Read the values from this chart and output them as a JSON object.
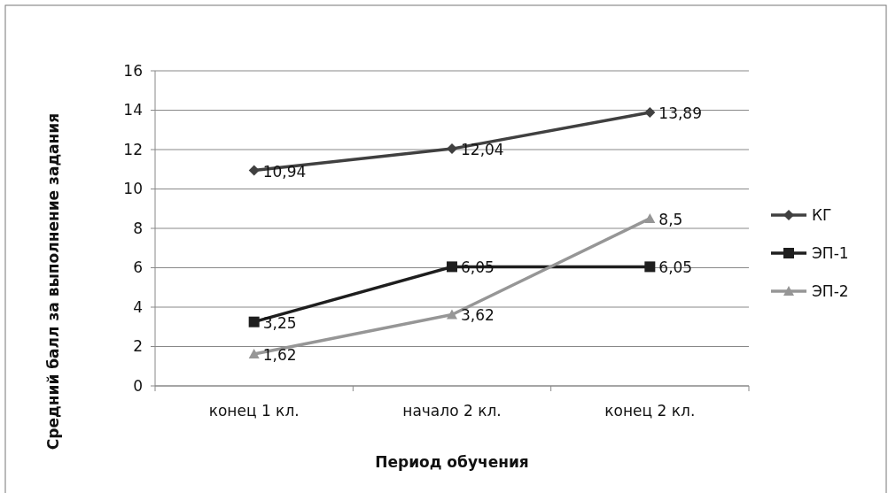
{
  "chart_data": {
    "type": "line",
    "xlabel": "Период обучения",
    "ylabel": "Средний балл за выполнение задания",
    "categories": [
      "конец 1 кл.",
      "начало 2 кл.",
      "конец 2 кл."
    ],
    "series": [
      {
        "name": "КГ",
        "color": "#404040",
        "marker": "diamond",
        "values": [
          10.94,
          12.04,
          13.89
        ],
        "value_labels": [
          "10,94",
          "12,04",
          "13,89"
        ]
      },
      {
        "name": "ЭП-1",
        "color": "#1e1e1e",
        "marker": "square",
        "values": [
          3.25,
          6.05,
          6.05
        ],
        "value_labels": [
          "3,25",
          "6,05",
          "6,05"
        ]
      },
      {
        "name": "ЭП-2",
        "color": "#969696",
        "marker": "triangle",
        "values": [
          1.62,
          3.62,
          8.5
        ],
        "value_labels": [
          "1,62",
          "3,62",
          "8,5"
        ]
      }
    ],
    "ylim": [
      0,
      16
    ],
    "yticks": [
      0,
      2,
      4,
      6,
      8,
      10,
      12,
      14,
      16
    ],
    "grid": "y",
    "legend": "right",
    "line_style": "solid"
  }
}
